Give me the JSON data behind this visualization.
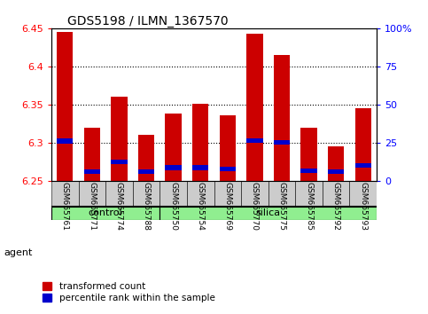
{
  "title": "GDS5198 / ILMN_1367570",
  "samples": [
    "GSM665761",
    "GSM665771",
    "GSM665774",
    "GSM665788",
    "GSM665750",
    "GSM665754",
    "GSM665769",
    "GSM665770",
    "GSM665775",
    "GSM665785",
    "GSM665792",
    "GSM665793"
  ],
  "groups": [
    "control",
    "control",
    "control",
    "control",
    "silica",
    "silica",
    "silica",
    "silica",
    "silica",
    "silica",
    "silica",
    "silica"
  ],
  "red_values": [
    6.445,
    6.32,
    6.36,
    6.31,
    6.338,
    6.351,
    6.336,
    6.443,
    6.415,
    6.32,
    6.295,
    6.345
  ],
  "blue_values": [
    6.302,
    6.262,
    6.275,
    6.262,
    6.267,
    6.267,
    6.265,
    6.303,
    6.3,
    6.263,
    6.262,
    6.27
  ],
  "ymin": 6.25,
  "ymax": 6.45,
  "yticks": [
    6.25,
    6.3,
    6.35,
    6.4,
    6.45
  ],
  "right_yticks": [
    0,
    25,
    50,
    75,
    100
  ],
  "right_yticklabels": [
    "0",
    "25",
    "50",
    "75",
    "100%"
  ],
  "bar_color": "#cc0000",
  "blue_color": "#0000cc",
  "bg_color": "#ffffff",
  "control_color": "#90ee90",
  "bar_width": 0.6,
  "blue_bar_height": 0.006,
  "legend_items": [
    "transformed count",
    "percentile rank within the sample"
  ],
  "grid_yticks": [
    6.3,
    6.35,
    6.4
  ],
  "label_box_color": "#cccccc",
  "figsize": [
    4.83,
    3.54
  ],
  "dpi": 100
}
